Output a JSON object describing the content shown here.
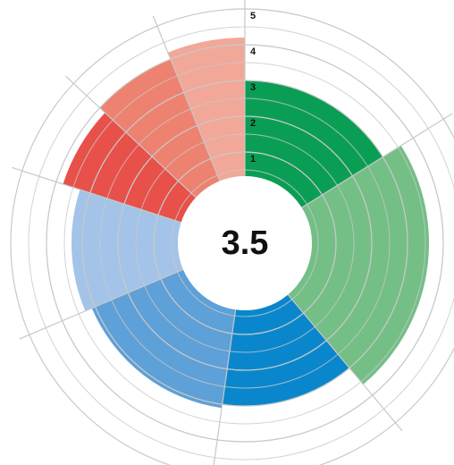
{
  "chart_data": {
    "type": "polar_area",
    "center_value": 3.5,
    "values": [
      3,
      3.6,
      3,
      3.1,
      3.3,
      3.8,
      4,
      4.2
    ],
    "angles": [
      58,
      82,
      48,
      59,
      41,
      25,
      25,
      22
    ],
    "colors": [
      "#0a9e55",
      "#74bf86",
      "#0a87cc",
      "#5ea0d8",
      "#a3c4e8",
      "#e8504a",
      "#ee8270",
      "#f2a898"
    ],
    "ylim": [
      0,
      5
    ],
    "yticks": [
      1,
      2,
      3,
      4,
      5
    ],
    "grid": true
  }
}
